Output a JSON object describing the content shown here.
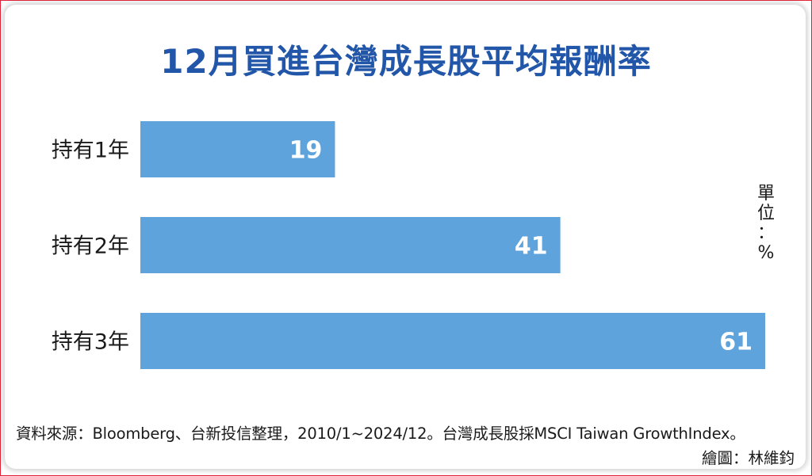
{
  "chart_data": {
    "type": "bar",
    "orientation": "horizontal",
    "title": "12月買進台灣成長股平均報酬率",
    "categories": [
      "持有1年",
      "持有2年",
      "持有3年"
    ],
    "values": [
      19,
      41,
      61
    ],
    "value_labels": [
      "19",
      "41",
      "61"
    ],
    "xlim": [
      0,
      61
    ],
    "bar_color": "#5fa3dc",
    "grid": false,
    "legend": "none"
  },
  "unit": [
    "單",
    "位",
    "：",
    "%"
  ],
  "source": "資料來源：Bloomberg、台新投信整理，2010/1~2024/12。台灣成長股採MSCI Taiwan GrowthIndex。",
  "credit": "繪圖：林維鈞",
  "colors": {
    "title": "#2256a8",
    "frame": "#e0233a"
  }
}
